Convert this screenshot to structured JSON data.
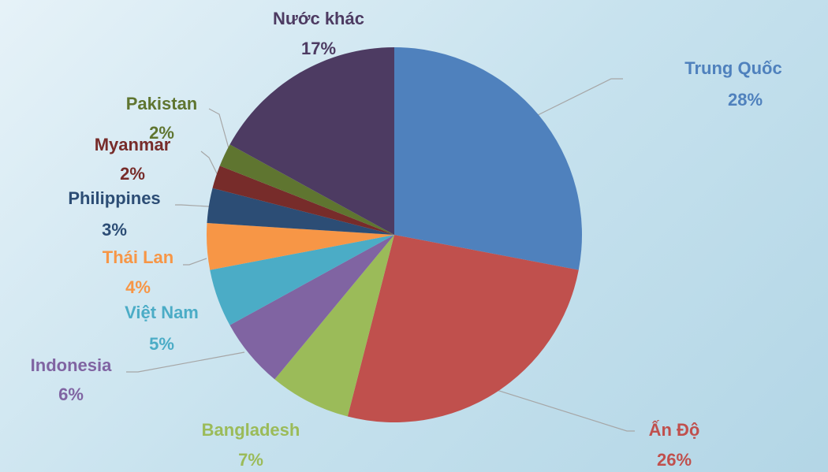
{
  "chart_data": {
    "type": "pie",
    "categories": [
      "Trung Quốc",
      "Ấn Độ",
      "Bangladesh",
      "Indonesia",
      "Việt Nam",
      "Thái Lan",
      "Philippines",
      "Myanmar",
      "Pakistan",
      "Nước khác"
    ],
    "values": [
      28,
      26,
      7,
      6,
      5,
      4,
      3,
      2,
      2,
      17
    ],
    "value_labels": [
      "28%",
      "26%",
      "7%",
      "6%",
      "5%",
      "4%",
      "3%",
      "2%",
      "2%",
      "17%"
    ],
    "colors": [
      "#4f81bd",
      "#c0504d",
      "#9bbb59",
      "#8064a2",
      "#4bacc6",
      "#f79646",
      "#2c4d75",
      "#772c2a",
      "#5f7530",
      "#4d3b62"
    ]
  }
}
